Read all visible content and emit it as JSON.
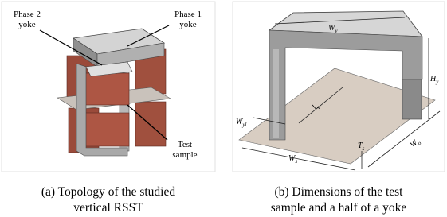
{
  "figure_a": {
    "labels": [
      {
        "lines": [
          "Phase 2",
          "yoke"
        ]
      },
      {
        "lines": [
          "Phase 1",
          "yoke"
        ]
      },
      {
        "lines": [
          "Test",
          "sample"
        ]
      }
    ],
    "caption": [
      "(a) Topology of the studied",
      "vertical RSST"
    ]
  },
  "figure_b": {
    "dimensions": [
      {
        "symbol": "W",
        "subscript": "y"
      },
      {
        "symbol": "H",
        "subscript": "y"
      },
      {
        "symbol": "l",
        "subscript": "y"
      },
      {
        "symbol": "W",
        "subscript": "yl"
      },
      {
        "symbol": "T",
        "subscript": "s"
      },
      {
        "symbol": "W",
        "subscript": "o"
      },
      {
        "symbol": "W",
        "subscript": "s"
      }
    ],
    "caption": [
      "(b) Dimensions of the test",
      "sample and a half of a yoke"
    ]
  }
}
